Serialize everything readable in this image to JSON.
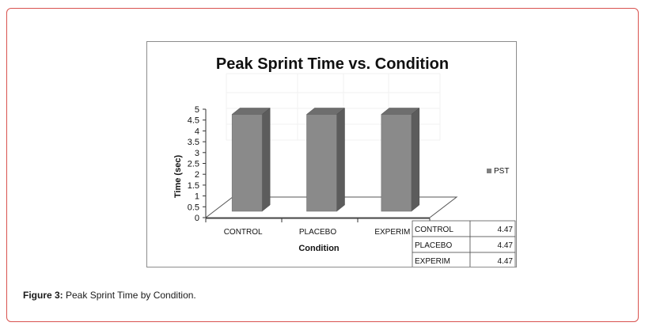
{
  "chart_data": {
    "type": "bar",
    "title": "Peak Sprint Time vs. Condition",
    "xlabel": "Condition",
    "ylabel": "Time (sec)",
    "categories": [
      "CONTROL",
      "PLACEBO",
      "EXPERIM"
    ],
    "series": [
      {
        "name": "PST",
        "values": [
          4.47,
          4.47,
          4.47
        ]
      }
    ],
    "value_labels": [
      "4.47",
      "4.47",
      "4.47"
    ],
    "ylim": [
      0,
      5
    ],
    "yticks": [
      "0",
      "0.5",
      "1",
      "1.5",
      "2",
      "2.5",
      "3",
      "3.5",
      "4",
      "4.5",
      "5"
    ],
    "legend": "right",
    "bar_color": "#8a8a8a"
  },
  "caption": {
    "label": "Figure 3:",
    "text": " Peak Sprint Time by Condition."
  },
  "colors": {
    "border_accent": "#d9534f"
  }
}
